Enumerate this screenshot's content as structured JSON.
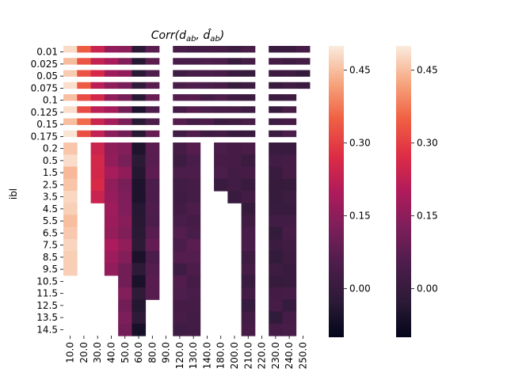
{
  "chart_data": {
    "type": "heatmap",
    "title": "Corr(d_ab, d̂_ab)",
    "title_parts": {
      "main": "Corr(",
      "var1": "d",
      "sub1": "ab",
      "sep": ", ",
      "var2": "d̂",
      "sub2": "ab",
      "end": ")"
    },
    "xlabel": "",
    "ylabel": "ibl",
    "x_categories": [
      "10.0",
      "20.0",
      "30.0",
      "40.0",
      "50.0",
      "60.0",
      "80.0",
      "90.0",
      "120.0",
      "130.0",
      "140.0",
      "180.0",
      "200.0",
      "210.0",
      "220.0",
      "230.0",
      "240.0",
      "250.0"
    ],
    "y_categories": [
      "0.01",
      "0.025",
      "0.05",
      "0.075",
      "0.1",
      "0.125",
      "0.15",
      "0.175",
      "0.2",
      "0.5",
      "1.5",
      "2.5",
      "3.5",
      "4.5",
      "5.5",
      "6.5",
      "7.5",
      "8.5",
      "9.5",
      "10.5",
      "11.5",
      "12.5",
      "13.5",
      "14.5"
    ],
    "value_range": [
      -0.1,
      0.5
    ],
    "colorbar_ticks": [
      "0.45",
      "0.30",
      "0.15",
      "0.00"
    ],
    "colorbar_tick_values": [
      0.45,
      0.3,
      0.15,
      0.0
    ],
    "colormap": "rocket",
    "colorbar_count": 2,
    "grid": false
  }
}
